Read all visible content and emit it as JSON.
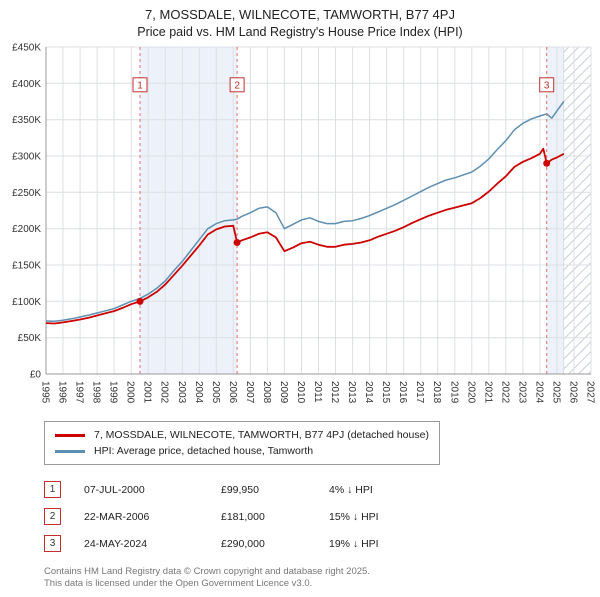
{
  "page": {
    "title": "7, MOSSDALE, WILNECOTE, TAMWORTH, B77 4PJ",
    "subtitle": "Price paid vs. HM Land Registry's House Price Index (HPI)"
  },
  "transactions": [
    {
      "num": "1",
      "date": "07-JUL-2000",
      "price": "£99,950",
      "hpi_diff": "4% ↓ HPI"
    },
    {
      "num": "2",
      "date": "22-MAR-2006",
      "price": "£181,000",
      "hpi_diff": "15% ↓ HPI"
    },
    {
      "num": "3",
      "date": "24-MAY-2024",
      "price": "£290,000",
      "hpi_diff": "19% ↓ HPI"
    }
  ],
  "footer": {
    "line1": "Contains HM Land Registry data © Crown copyright and database right 2025.",
    "line2": "This data is licensed under the Open Government Licence v3.0."
  },
  "chart_data": {
    "type": "line",
    "title": "7, MOSSDALE, WILNECOTE, TAMWORTH, B77 4PJ",
    "subtitle": "Price paid vs. HM Land Registry's House Price Index (HPI)",
    "x_range": [
      1995,
      2027
    ],
    "y_range": [
      0,
      450000
    ],
    "y_tick_step": 50000,
    "grid": true,
    "legend_position": "bottom",
    "x_ticks": [
      1995,
      1996,
      1997,
      1998,
      1999,
      2000,
      2001,
      2002,
      2003,
      2004,
      2005,
      2006,
      2007,
      2008,
      2009,
      2010,
      2011,
      2012,
      2013,
      2014,
      2015,
      2016,
      2017,
      2018,
      2019,
      2020,
      2021,
      2022,
      2023,
      2024,
      2025,
      2026,
      2027
    ],
    "y_tick_labels": [
      "£0",
      "£50K",
      "£100K",
      "£150K",
      "£200K",
      "£250K",
      "£300K",
      "£350K",
      "£400K",
      "£450K"
    ],
    "series": [
      {
        "name": "7, MOSSDALE, WILNECOTE, TAMWORTH, B77 4PJ (detached house)",
        "color": "#cc0000",
        "points": [
          [
            1995.0,
            70000
          ],
          [
            1995.5,
            69500
          ],
          [
            1996.0,
            71000
          ],
          [
            1996.5,
            73000
          ],
          [
            1997.0,
            75000
          ],
          [
            1997.5,
            77500
          ],
          [
            1998.0,
            80500
          ],
          [
            1998.5,
            83500
          ],
          [
            1999.0,
            86500
          ],
          [
            1999.5,
            91000
          ],
          [
            2000.0,
            96000
          ],
          [
            2000.52,
            99950
          ],
          [
            2001.0,
            105500
          ],
          [
            2001.5,
            113000
          ],
          [
            2002.0,
            123000
          ],
          [
            2002.5,
            136000
          ],
          [
            2003.0,
            149000
          ],
          [
            2003.5,
            163000
          ],
          [
            2004.0,
            177000
          ],
          [
            2004.5,
            192000
          ],
          [
            2005.0,
            199000
          ],
          [
            2005.5,
            203000
          ],
          [
            2006.0,
            204000
          ],
          [
            2006.22,
            181000
          ],
          [
            2006.5,
            184000
          ],
          [
            2007.0,
            188000
          ],
          [
            2007.5,
            193000
          ],
          [
            2008.0,
            195000
          ],
          [
            2008.5,
            188000
          ],
          [
            2009.0,
            169000
          ],
          [
            2009.5,
            174000
          ],
          [
            2010.0,
            180000
          ],
          [
            2010.5,
            182000
          ],
          [
            2011.0,
            178000
          ],
          [
            2011.5,
            175000
          ],
          [
            2012.0,
            175000
          ],
          [
            2012.5,
            178000
          ],
          [
            2013.0,
            179000
          ],
          [
            2013.5,
            181000
          ],
          [
            2014.0,
            184000
          ],
          [
            2014.5,
            189000
          ],
          [
            2015.0,
            193000
          ],
          [
            2015.5,
            197000
          ],
          [
            2016.0,
            202000
          ],
          [
            2016.5,
            208000
          ],
          [
            2017.0,
            213000
          ],
          [
            2017.5,
            218000
          ],
          [
            2018.0,
            222000
          ],
          [
            2018.5,
            226000
          ],
          [
            2019.0,
            229000
          ],
          [
            2019.5,
            232000
          ],
          [
            2020.0,
            235000
          ],
          [
            2020.5,
            242000
          ],
          [
            2021.0,
            251000
          ],
          [
            2021.5,
            262000
          ],
          [
            2022.0,
            272000
          ],
          [
            2022.5,
            285000
          ],
          [
            2023.0,
            292000
          ],
          [
            2023.5,
            297000
          ],
          [
            2024.0,
            303000
          ],
          [
            2024.2,
            310000
          ],
          [
            2024.4,
            290000
          ],
          [
            2024.7,
            295000
          ],
          [
            2025.0,
            298000
          ],
          [
            2025.4,
            303000
          ]
        ]
      },
      {
        "name": "HPI: Average price, detached house, Tamworth",
        "color": "#5e8fb0",
        "points": [
          [
            1995.0,
            73000
          ],
          [
            1995.5,
            72500
          ],
          [
            1996.0,
            74000
          ],
          [
            1996.5,
            76000
          ],
          [
            1997.0,
            78500
          ],
          [
            1997.5,
            81000
          ],
          [
            1998.0,
            84000
          ],
          [
            1998.5,
            87000
          ],
          [
            1999.0,
            90000
          ],
          [
            1999.5,
            95000
          ],
          [
            2000.0,
            100000
          ],
          [
            2000.52,
            104000
          ],
          [
            2001.0,
            110000
          ],
          [
            2001.5,
            118000
          ],
          [
            2002.0,
            128000
          ],
          [
            2002.5,
            142000
          ],
          [
            2003.0,
            155000
          ],
          [
            2003.5,
            170000
          ],
          [
            2004.0,
            185000
          ],
          [
            2004.5,
            200000
          ],
          [
            2005.0,
            207000
          ],
          [
            2005.5,
            211000
          ],
          [
            2006.0,
            212000
          ],
          [
            2006.22,
            213000
          ],
          [
            2006.5,
            217000
          ],
          [
            2007.0,
            222000
          ],
          [
            2007.5,
            228000
          ],
          [
            2008.0,
            230000
          ],
          [
            2008.5,
            222000
          ],
          [
            2009.0,
            200000
          ],
          [
            2009.5,
            206000
          ],
          [
            2010.0,
            212000
          ],
          [
            2010.5,
            215000
          ],
          [
            2011.0,
            210000
          ],
          [
            2011.5,
            207000
          ],
          [
            2012.0,
            207000
          ],
          [
            2012.5,
            210000
          ],
          [
            2013.0,
            211000
          ],
          [
            2013.5,
            214000
          ],
          [
            2014.0,
            218000
          ],
          [
            2014.5,
            223000
          ],
          [
            2015.0,
            228000
          ],
          [
            2015.5,
            233000
          ],
          [
            2016.0,
            239000
          ],
          [
            2016.5,
            245000
          ],
          [
            2017.0,
            251000
          ],
          [
            2017.5,
            257000
          ],
          [
            2018.0,
            262000
          ],
          [
            2018.5,
            267000
          ],
          [
            2019.0,
            270000
          ],
          [
            2019.5,
            274000
          ],
          [
            2020.0,
            278000
          ],
          [
            2020.5,
            286000
          ],
          [
            2021.0,
            296000
          ],
          [
            2021.5,
            309000
          ],
          [
            2022.0,
            321000
          ],
          [
            2022.5,
            336000
          ],
          [
            2023.0,
            345000
          ],
          [
            2023.5,
            351000
          ],
          [
            2024.0,
            355000
          ],
          [
            2024.4,
            358000
          ],
          [
            2024.7,
            352000
          ],
          [
            2025.0,
            362000
          ],
          [
            2025.4,
            375000
          ]
        ]
      }
    ],
    "sales": [
      {
        "label": "1",
        "x": 2000.52,
        "y": 99950
      },
      {
        "label": "2",
        "x": 2006.22,
        "y": 181000
      },
      {
        "label": "3",
        "x": 2024.4,
        "y": 290000
      }
    ],
    "sale_line_color": "#e07070",
    "shaded_bands": [
      [
        2000.52,
        2006.22
      ],
      [
        2024.4,
        2025.4
      ]
    ],
    "hatched_band": [
      2025.4,
      2027
    ],
    "band_color": "#edf2fa"
  }
}
